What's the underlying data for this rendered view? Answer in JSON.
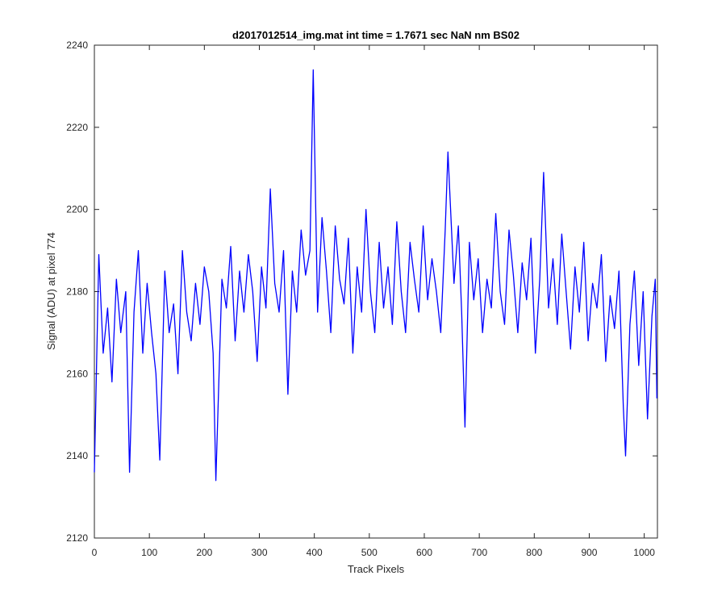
{
  "chart_data": {
    "type": "line",
    "title": "d2017012514_img.mat int time = 1.7671 sec  NaN nm BS02",
    "xlabel": "Track Pixels",
    "ylabel": "Signal (ADU) at pixel 774",
    "xlim": [
      0,
      1024
    ],
    "ylim": [
      2120,
      2240
    ],
    "xticks": [
      0,
      100,
      200,
      300,
      400,
      500,
      600,
      700,
      800,
      900,
      1000
    ],
    "yticks": [
      2120,
      2140,
      2160,
      2180,
      2200,
      2220,
      2240
    ],
    "grid": false,
    "series": [
      {
        "color": "#0000ff",
        "x": [
          0,
          8,
          16,
          24,
          32,
          40,
          48,
          57,
          64,
          72,
          80,
          88,
          96,
          104,
          112,
          119,
          128,
          136,
          144,
          152,
          160,
          168,
          176,
          184,
          192,
          200,
          208,
          216,
          221,
          232,
          240,
          248,
          256,
          264,
          272,
          280,
          288,
          296,
          304,
          312,
          320,
          328,
          336,
          344,
          352,
          360,
          368,
          376,
          384,
          392,
          398,
          406,
          414,
          422,
          430,
          438,
          446,
          454,
          462,
          470,
          478,
          486,
          494,
          502,
          510,
          518,
          526,
          534,
          542,
          550,
          558,
          566,
          574,
          582,
          590,
          598,
          606,
          614,
          622,
          630,
          638,
          643,
          654,
          662,
          668,
          674,
          682,
          690,
          698,
          706,
          714,
          722,
          730,
          738,
          746,
          754,
          762,
          770,
          778,
          786,
          794,
          802,
          810,
          817,
          826,
          834,
          842,
          850,
          858,
          866,
          874,
          882,
          890,
          898,
          906,
          914,
          922,
          930,
          938,
          946,
          954,
          962,
          966,
          974,
          982,
          990,
          998,
          1006,
          1014,
          1020,
          1023
        ],
        "y": [
          2136,
          2189,
          2165,
          2176,
          2158,
          2183,
          2170,
          2180,
          2136,
          2175,
          2190,
          2165,
          2182,
          2170,
          2160,
          2139,
          2185,
          2170,
          2177,
          2160,
          2190,
          2175,
          2168,
          2182,
          2172,
          2186,
          2180,
          2165,
          2134,
          2183,
          2176,
          2191,
          2168,
          2185,
          2175,
          2189,
          2180,
          2163,
          2186,
          2176,
          2205,
          2182,
          2175,
          2190,
          2155,
          2185,
          2175,
          2195,
          2184,
          2190,
          2234,
          2175,
          2198,
          2185,
          2170,
          2196,
          2183,
          2177,
          2193,
          2165,
          2186,
          2175,
          2200,
          2180,
          2170,
          2192,
          2176,
          2186,
          2172,
          2197,
          2180,
          2170,
          2192,
          2183,
          2175,
          2196,
          2178,
          2188,
          2180,
          2170,
          2195,
          2214,
          2182,
          2196,
          2175,
          2147,
          2192,
          2178,
          2188,
          2170,
          2183,
          2176,
          2199,
          2180,
          2172,
          2195,
          2184,
          2170,
          2187,
          2178,
          2193,
          2165,
          2183,
          2209,
          2176,
          2188,
          2172,
          2194,
          2180,
          2166,
          2186,
          2175,
          2192,
          2168,
          2182,
          2176,
          2189,
          2163,
          2179,
          2171,
          2185,
          2152,
          2140,
          2172,
          2185,
          2162,
          2180,
          2149,
          2174,
          2183,
          2154
        ]
      }
    ]
  }
}
